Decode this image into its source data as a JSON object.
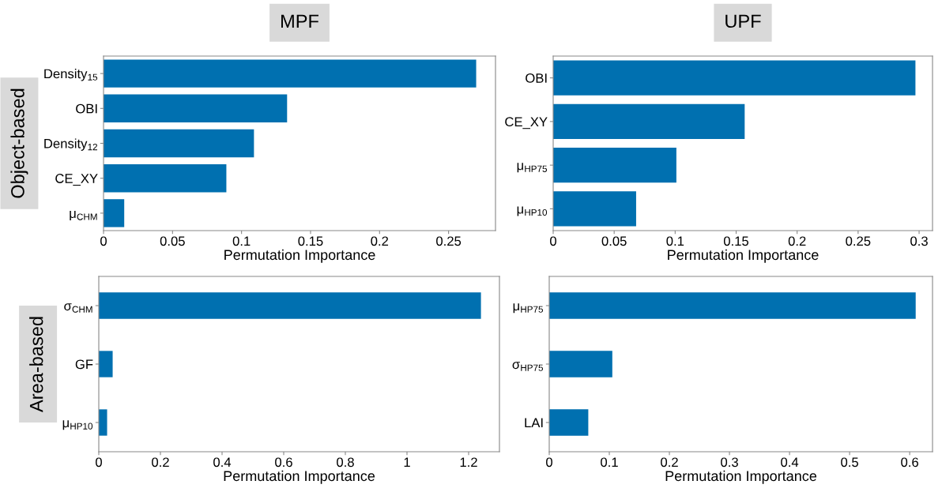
{
  "chart_data": [
    {
      "type": "bar",
      "orientation": "horizontal",
      "title": "MPF",
      "ylabel": "Object-based",
      "xlabel": "Permutation Importance",
      "categories": [
        "Density$_{15}$",
        "OBI",
        "Density$_{12}$",
        "CE_XY",
        "μ$_{CHM}$"
      ],
      "values": [
        0.27,
        0.133,
        0.109,
        0.089,
        0.015
      ],
      "color": "#0070b0",
      "xlim": [
        0,
        0.284
      ],
      "xticks": [
        0,
        0.05,
        0.1,
        0.15,
        0.2,
        0.25
      ]
    },
    {
      "type": "bar",
      "orientation": "horizontal",
      "title": "UPF",
      "xlabel": "Permutation Importance",
      "categories": [
        "OBI",
        "CE_XY",
        "μ$_{HP75}$",
        "μ$_{HP10}$"
      ],
      "values": [
        0.297,
        0.157,
        0.101,
        0.068
      ],
      "color": "#0070b0",
      "xlim": [
        0,
        0.311
      ],
      "xticks": [
        0,
        0.05,
        0.1,
        0.15,
        0.2,
        0.25,
        0.3
      ]
    },
    {
      "type": "bar",
      "orientation": "horizontal",
      "ylabel": "Area-based",
      "xlabel": "Permutation Importance",
      "categories": [
        "σ$_{CHM}$",
        "GF",
        "μ$_{HP10}$"
      ],
      "values": [
        1.24,
        0.045,
        0.027
      ],
      "color": "#0070b0",
      "xlim": [
        0,
        1.3
      ],
      "xticks": [
        0,
        0.2,
        0.4,
        0.6,
        0.8,
        1,
        1.2
      ]
    },
    {
      "type": "bar",
      "orientation": "horizontal",
      "xlabel": "Permutation Importance",
      "categories": [
        "μ$_{HP75}$",
        "σ$_{HP75}$",
        "LAI"
      ],
      "values": [
        0.61,
        0.105,
        0.065
      ],
      "color": "#0070b0",
      "xlim": [
        0,
        0.638
      ],
      "xticks": [
        0,
        0.1,
        0.2,
        0.3,
        0.4,
        0.5,
        0.6
      ]
    }
  ]
}
